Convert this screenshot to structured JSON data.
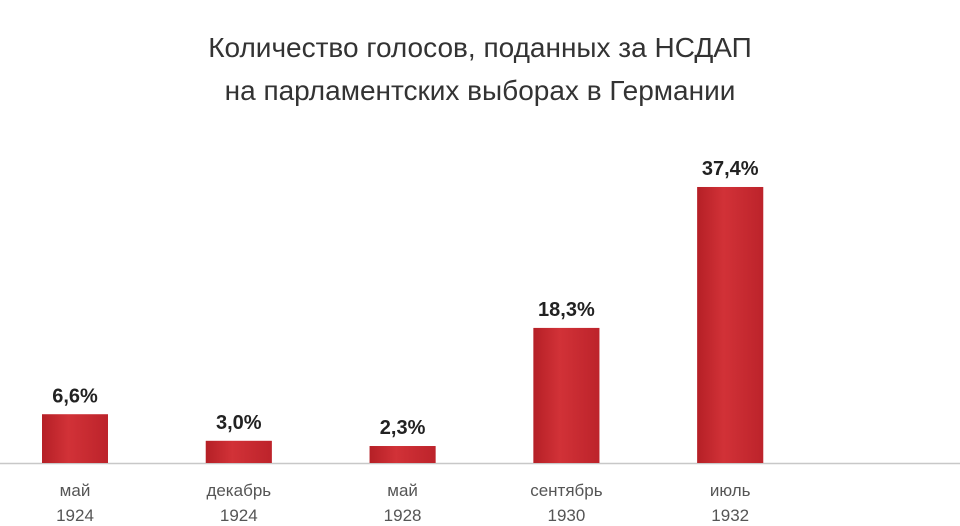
{
  "chart_data": {
    "type": "bar",
    "title": [
      "Количество голосов, поданных за НСДАП",
      "на парламентских выборах в Германии"
    ],
    "categories": [
      [
        "май",
        "1924"
      ],
      [
        "декабрь",
        "1924"
      ],
      [
        "май",
        "1928"
      ],
      [
        "сентябрь",
        "1930"
      ],
      [
        "июль",
        "1932"
      ]
    ],
    "values": [
      6.6,
      3.0,
      2.3,
      18.3,
      37.4
    ],
    "value_labels": [
      "6,6%",
      "3,0%",
      "2,3%",
      "18,3%",
      "37,4%"
    ],
    "color": "#c8252c"
  }
}
